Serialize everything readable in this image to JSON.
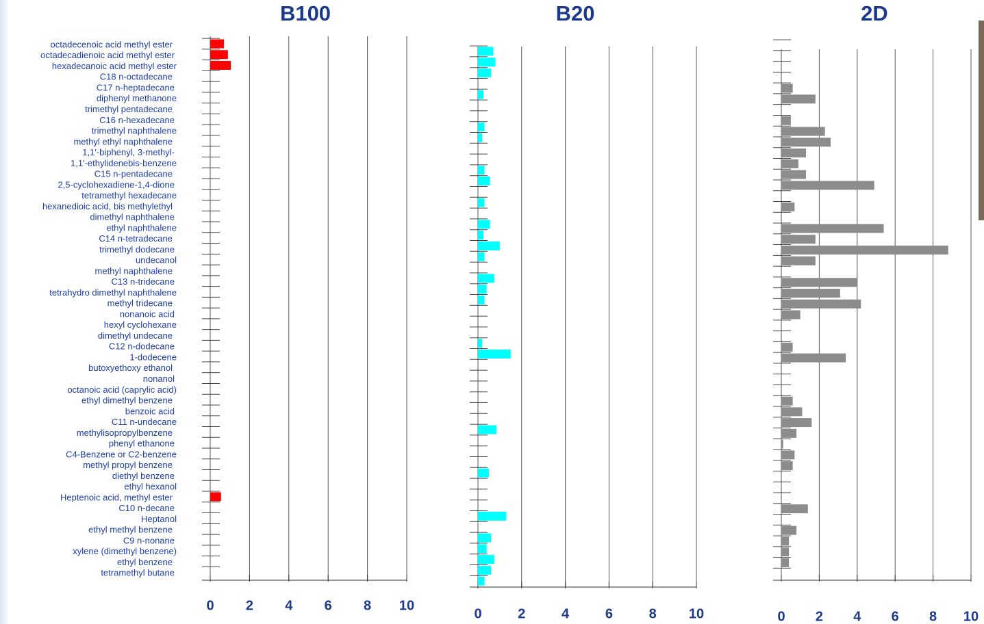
{
  "chart_data": [
    {
      "type": "bar",
      "title": "B100",
      "color": "#ff0000",
      "categories": [
        "octadecenoic acid methyl ester",
        "octadecadienoic acid methyl ester",
        "hexadecanoic acid methyl ester",
        "C18  n-octadecane",
        "C17  n-heptadecane",
        "diphenyl methanone",
        "trimethyl pentadecane",
        "C16  n-hexadecane",
        "trimethyl naphthalene",
        "methyl ethyl naphthalene",
        "1,1'-biphenyl, 3-methyl-",
        "1,1'-ethylidenebis-benzene",
        "C15  n-pentadecane",
        "2,5-cyclohexadiene-1,4-dione",
        "tetramethyl hexadecane",
        "hexanedioic acid, bis methylethyl",
        "dimethyl naphthalene",
        "ethyl naphthalene",
        "C14  n-tetradecane",
        "trimethyl dodecane",
        "undecanol",
        "methyl naphthalene",
        "C13  n-tridecane",
        "tetrahydro dimethyl naphthalene",
        "methyl tridecane",
        "nonanoic acid",
        "hexyl cyclohexane",
        "dimethyl undecane",
        "C12  n-dodecane",
        "1-dodecene",
        "butoxyethoxy ethanol",
        "nonanol",
        "octanoic acid (caprylic acid)",
        "ethyl dimethyl benzene",
        "benzoic acid",
        "C11  n-undecane",
        "methylisopropylbenzene",
        "phenyl ethanone",
        "C4-Benzene or C2-benzene",
        "methyl propyl benzene",
        "diethyl benzene",
        "ethyl hexanol",
        "Heptenoic acid, methyl ester",
        "C10   n-decane",
        "Heptanol",
        "ethyl methyl benzene",
        "C9  n-nonane",
        "xylene (dimethyl benzene)",
        "ethyl benzene",
        "tetramethyl butane"
      ],
      "values": [
        0.7,
        0.9,
        1.05,
        0,
        0,
        0,
        0,
        0,
        0,
        0,
        0,
        0,
        0,
        0,
        0,
        0,
        0,
        0,
        0,
        0,
        0,
        0,
        0,
        0,
        0,
        0,
        0,
        0,
        0,
        0,
        0,
        0,
        0,
        0,
        0,
        0,
        0,
        0,
        0,
        0,
        0,
        0,
        0.55,
        0,
        0,
        0,
        0,
        0,
        0,
        0
      ],
      "xlim": [
        0,
        10
      ],
      "xticks": [
        0,
        2,
        4,
        6,
        8,
        10
      ],
      "grid": true
    },
    {
      "type": "bar",
      "title": "B20",
      "color": "#00ffff",
      "values": [
        0.7,
        0.8,
        0.6,
        0,
        0.25,
        0,
        0,
        0.3,
        0.2,
        0,
        0,
        0.3,
        0.55,
        0,
        0.3,
        0,
        0.55,
        0.25,
        1.0,
        0.3,
        0,
        0.75,
        0.4,
        0.3,
        0,
        0,
        0,
        0.2,
        1.5,
        0,
        0,
        0,
        0,
        0,
        0,
        0.85,
        0,
        0,
        0,
        0.5,
        0,
        0,
        0,
        1.3,
        0,
        0.6,
        0.4,
        0.75,
        0.6,
        0.3
      ],
      "xlim": [
        0,
        10
      ],
      "xticks": [
        0,
        2,
        4,
        6,
        8,
        10
      ],
      "grid": true
    },
    {
      "type": "bar",
      "title": "2D",
      "color": "#8c8c8c",
      "values": [
        0,
        0,
        0,
        0,
        0.6,
        1.8,
        0,
        0.5,
        2.3,
        2.6,
        1.3,
        0.9,
        1.3,
        4.9,
        0,
        0.7,
        0,
        5.4,
        1.8,
        8.8,
        1.8,
        0,
        4.0,
        3.1,
        4.2,
        1.0,
        0,
        0,
        0.6,
        3.4,
        0,
        0,
        0,
        0.6,
        1.1,
        1.6,
        0.8,
        0.1,
        0.7,
        0.6,
        0,
        0,
        0,
        1.4,
        0,
        0.8,
        0.4,
        0.4,
        0.4,
        0
      ],
      "xlim": [
        0,
        10
      ],
      "xticks": [
        0,
        2,
        4,
        6,
        8,
        10
      ],
      "grid": true
    }
  ]
}
